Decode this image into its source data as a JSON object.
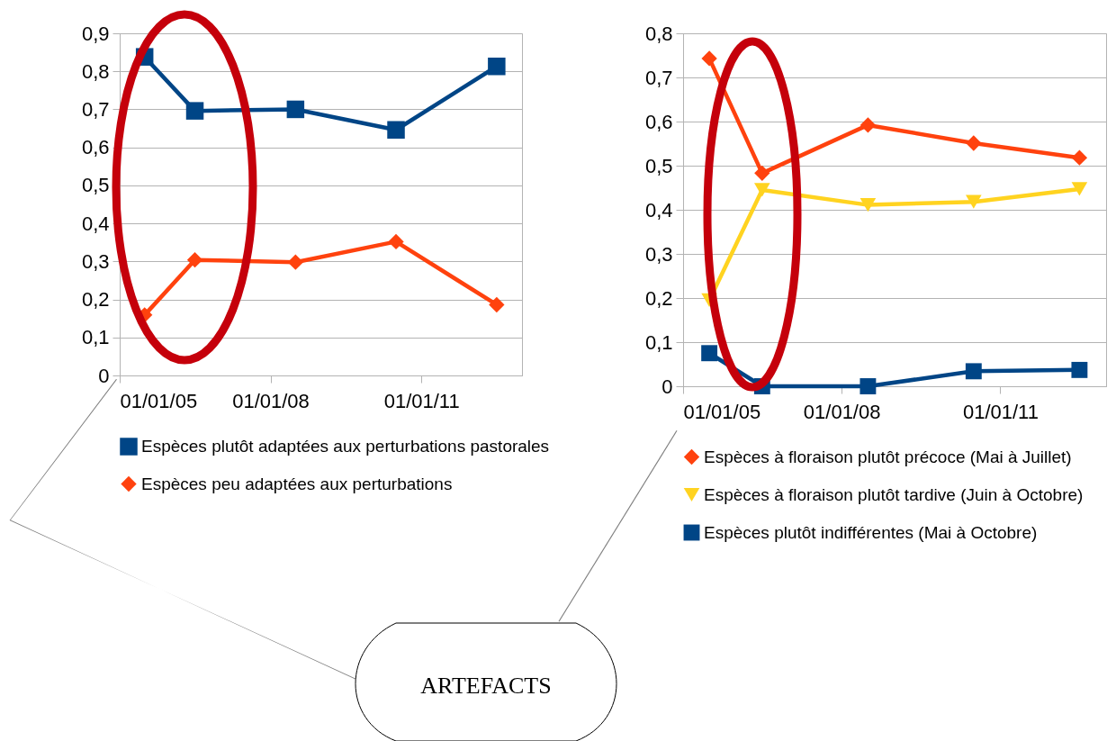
{
  "chart_data": [
    {
      "type": "line",
      "x": [
        "2005-07-01",
        "2006-07-01",
        "2008-07-01",
        "2010-07-01",
        "2012-07-01"
      ],
      "series": [
        {
          "name": "Espèces plutôt adaptées aux perturbations pastorales",
          "color": "#004586",
          "marker": "square",
          "values": [
            0.838,
            0.696,
            0.7,
            0.646,
            0.813
          ]
        },
        {
          "name": "Espèces peu adaptées aux perturbations",
          "color": "#ff420e",
          "marker": "diamond",
          "values": [
            0.159,
            0.304,
            0.298,
            0.352,
            0.186
          ]
        }
      ],
      "xlim": [
        "2005-01-01",
        "2013-01-01"
      ],
      "xticks": [
        {
          "value": "2005-01-01",
          "label": "01/01/05"
        },
        {
          "value": "2008-01-01",
          "label": "01/01/08"
        },
        {
          "value": "2011-01-01",
          "label": "01/01/11"
        }
      ],
      "ylim": [
        0,
        0.9
      ],
      "yticks": [
        0,
        {
          "value": 0.1,
          "label": "0,1"
        },
        {
          "value": 0.2,
          "label": "0,2"
        },
        {
          "value": 0.3,
          "label": "0,3"
        },
        {
          "value": 0.4,
          "label": "0,4"
        },
        {
          "value": 0.5,
          "label": "0,5"
        },
        {
          "value": 0.6,
          "label": "0,6"
        },
        {
          "value": 0.7,
          "label": "0,7"
        },
        {
          "value": 0.8,
          "label": "0,8"
        },
        {
          "value": 0.9,
          "label": "0,9"
        }
      ],
      "grid": "y",
      "legend": "bottom",
      "annotations": [
        "ARTEFACTS"
      ]
    },
    {
      "type": "line",
      "x": [
        "2005-07-01",
        "2006-07-01",
        "2008-07-01",
        "2010-07-01",
        "2012-07-01"
      ],
      "series": [
        {
          "name": "Espèces à floraison plutôt précoce (Mai à Juillet)",
          "color": "#ff420e",
          "marker": "diamond",
          "values": [
            0.743,
            0.483,
            0.592,
            0.551,
            0.518
          ]
        },
        {
          "name": "Espèces à floraison plutôt tardive (Juin à Octobre)",
          "color": "#ffd320",
          "marker": "triangle",
          "values": [
            0.195,
            0.445,
            0.411,
            0.418,
            0.447
          ]
        },
        {
          "name": "Espèces plutôt indifférentes (Mai à Octobre)",
          "color": "#004586",
          "marker": "square",
          "values": [
            0.075,
            0,
            0,
            0.034,
            0.037
          ]
        }
      ],
      "xlim": [
        "2005-01-01",
        "2013-01-01"
      ],
      "xticks": [
        {
          "value": "2005-01-01",
          "label": "01/01/05"
        },
        {
          "value": "2008-01-01",
          "label": "01/01/08"
        },
        {
          "value": "2011-01-01",
          "label": "01/01/11"
        }
      ],
      "ylim": [
        0,
        0.8
      ],
      "yticks": [
        0,
        {
          "value": 0.1,
          "label": "0,1"
        },
        {
          "value": 0.2,
          "label": "0,2"
        },
        {
          "value": 0.3,
          "label": "0,3"
        },
        {
          "value": 0.4,
          "label": "0,4"
        },
        {
          "value": 0.5,
          "label": "0,5"
        },
        {
          "value": 0.6,
          "label": "0,6"
        },
        {
          "value": 0.7,
          "label": "0,7"
        },
        {
          "value": 0.8,
          "label": "0,8"
        }
      ],
      "grid": "y",
      "legend": "bottom"
    }
  ]
}
